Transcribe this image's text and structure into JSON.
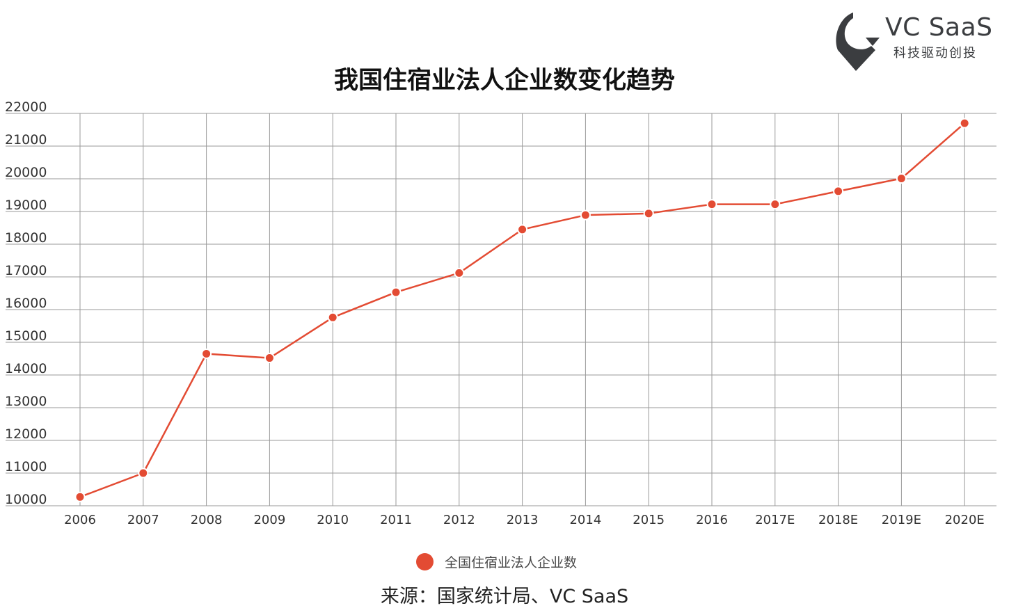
{
  "brand": {
    "name": "VC SaaS",
    "tagline": "科技驱动创投",
    "icon": "vc-saas-logo-mark",
    "color": "#3b3d40"
  },
  "source": "来源：国家统计局、VC SaaS",
  "chart_data": {
    "type": "line",
    "title": "我国住宿业法人企业数变化趋势",
    "xlabel": "",
    "ylabel": "",
    "categories": [
      "2006",
      "2007",
      "2008",
      "2009",
      "2010",
      "2011",
      "2012",
      "2013",
      "2014",
      "2015",
      "2016",
      "2017E",
      "2018E",
      "2019E",
      "2020E"
    ],
    "series": [
      {
        "name": "全国住宿业法人企业数",
        "color": "#e34b33",
        "values": [
          10270,
          11000,
          14650,
          14520,
          15760,
          16530,
          17120,
          18450,
          18890,
          18940,
          19220,
          19220,
          19620,
          20010,
          21700
        ]
      }
    ],
    "ylim": [
      10000,
      22000
    ],
    "yticks": [
      10000,
      11000,
      12000,
      13000,
      14000,
      15000,
      16000,
      17000,
      18000,
      19000,
      20000,
      21000,
      22000
    ],
    "grid": true,
    "legend": "bottom"
  }
}
